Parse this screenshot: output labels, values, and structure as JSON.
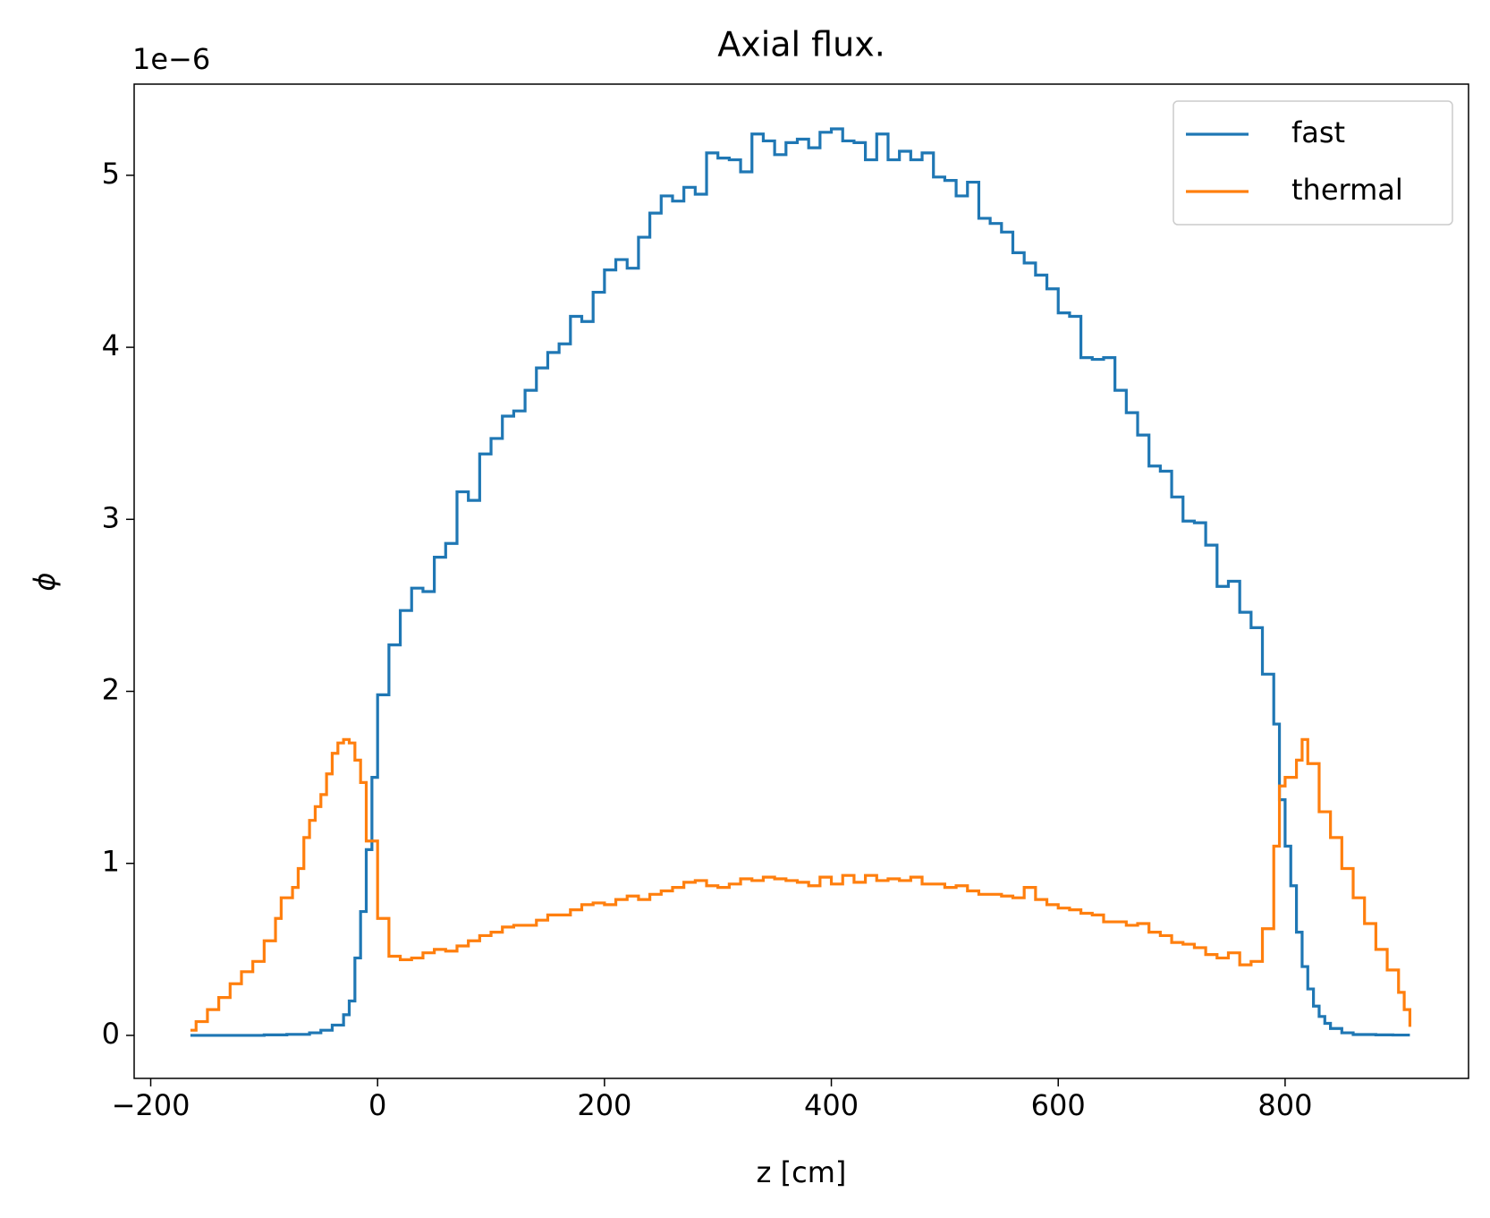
{
  "chart_data": {
    "type": "step",
    "title": "Axial flux.",
    "x_label": "z [cm]",
    "y_label": "ϕ",
    "y_offset_text": "1e−6",
    "xlim": [
      -214.6,
      961.7
    ],
    "ylim": [
      -0.25,
      5.53
    ],
    "xticks": [
      {
        "value": -200,
        "label": "−200"
      },
      0,
      200,
      400,
      600,
      800
    ],
    "yticks": [
      0,
      1,
      2,
      3,
      4,
      5
    ],
    "legend": "upper right",
    "grid": false,
    "series": [
      {
        "name": "fast",
        "color": "#1f77b4",
        "x": [
          -165,
          -100,
          -80,
          -60,
          -50,
          -40,
          -30,
          -25,
          -20,
          -15,
          -10,
          -5,
          0,
          10,
          20,
          30,
          40,
          50,
          60,
          70,
          80,
          90,
          100,
          110,
          120,
          130,
          140,
          150,
          160,
          170,
          180,
          190,
          200,
          210,
          220,
          230,
          240,
          250,
          260,
          270,
          280,
          290,
          300,
          310,
          320,
          330,
          340,
          350,
          360,
          370,
          380,
          390,
          400,
          410,
          420,
          430,
          440,
          450,
          460,
          470,
          480,
          490,
          500,
          510,
          520,
          530,
          540,
          550,
          560,
          570,
          580,
          590,
          600,
          610,
          620,
          630,
          640,
          650,
          660,
          670,
          680,
          690,
          700,
          710,
          720,
          730,
          740,
          750,
          760,
          770,
          780,
          790,
          795,
          800,
          805,
          810,
          815,
          820,
          825,
          830,
          835,
          840,
          850,
          860,
          880,
          895,
          910
        ],
        "values": [
          0,
          0.003,
          0.006,
          0.015,
          0.03,
          0.06,
          0.12,
          0.2,
          0.45,
          0.72,
          1.08,
          1.5,
          1.98,
          2.27,
          2.47,
          2.6,
          2.58,
          2.78,
          2.86,
          3.16,
          3.11,
          3.38,
          3.47,
          3.6,
          3.63,
          3.75,
          3.88,
          3.97,
          4.02,
          4.18,
          4.15,
          4.32,
          4.45,
          4.51,
          4.46,
          4.64,
          4.78,
          4.88,
          4.85,
          4.93,
          4.89,
          5.13,
          5.1,
          5.09,
          5.02,
          5.24,
          5.2,
          5.12,
          5.19,
          5.21,
          5.16,
          5.25,
          5.27,
          5.2,
          5.19,
          5.09,
          5.24,
          5.09,
          5.14,
          5.09,
          5.13,
          4.99,
          4.97,
          4.88,
          4.96,
          4.75,
          4.72,
          4.67,
          4.55,
          4.49,
          4.42,
          4.34,
          4.2,
          4.18,
          3.94,
          3.93,
          3.94,
          3.75,
          3.62,
          3.49,
          3.31,
          3.28,
          3.13,
          2.99,
          2.98,
          2.85,
          2.61,
          2.64,
          2.46,
          2.37,
          2.1,
          1.81,
          1.37,
          1.1,
          0.87,
          0.6,
          0.4,
          0.27,
          0.17,
          0.11,
          0.07,
          0.04,
          0.015,
          0.005,
          0.003,
          0.002,
          0.002
        ]
      },
      {
        "name": "thermal",
        "color": "#ff7f0e",
        "x": [
          -165,
          -160,
          -150,
          -140,
          -130,
          -120,
          -110,
          -100,
          -90,
          -85,
          -75,
          -70,
          -65,
          -60,
          -55,
          -50,
          -45,
          -40,
          -35,
          -30,
          -25,
          -20,
          -15,
          -10,
          0,
          10,
          20,
          30,
          40,
          50,
          60,
          70,
          80,
          90,
          100,
          110,
          120,
          130,
          140,
          150,
          160,
          170,
          180,
          190,
          200,
          210,
          220,
          230,
          240,
          250,
          260,
          270,
          280,
          290,
          300,
          310,
          320,
          330,
          340,
          350,
          360,
          370,
          380,
          390,
          400,
          410,
          420,
          430,
          440,
          450,
          460,
          470,
          480,
          490,
          500,
          510,
          520,
          530,
          540,
          550,
          560,
          570,
          580,
          590,
          600,
          610,
          620,
          630,
          640,
          650,
          660,
          670,
          680,
          690,
          700,
          710,
          720,
          730,
          740,
          750,
          760,
          770,
          780,
          790,
          795,
          800,
          810,
          815,
          820,
          830,
          840,
          850,
          860,
          870,
          880,
          890,
          900,
          905,
          910
        ],
        "values": [
          0.03,
          0.08,
          0.15,
          0.22,
          0.3,
          0.37,
          0.43,
          0.55,
          0.68,
          0.8,
          0.86,
          0.97,
          1.15,
          1.25,
          1.33,
          1.4,
          1.52,
          1.64,
          1.7,
          1.72,
          1.7,
          1.6,
          1.47,
          1.13,
          0.68,
          0.46,
          0.44,
          0.45,
          0.48,
          0.5,
          0.49,
          0.52,
          0.55,
          0.58,
          0.6,
          0.63,
          0.64,
          0.64,
          0.67,
          0.7,
          0.7,
          0.73,
          0.76,
          0.77,
          0.76,
          0.79,
          0.81,
          0.79,
          0.82,
          0.84,
          0.86,
          0.89,
          0.9,
          0.87,
          0.86,
          0.88,
          0.91,
          0.9,
          0.92,
          0.91,
          0.9,
          0.89,
          0.87,
          0.92,
          0.88,
          0.93,
          0.89,
          0.93,
          0.9,
          0.91,
          0.9,
          0.92,
          0.88,
          0.88,
          0.86,
          0.87,
          0.84,
          0.82,
          0.82,
          0.81,
          0.8,
          0.86,
          0.79,
          0.76,
          0.74,
          0.73,
          0.71,
          0.7,
          0.66,
          0.66,
          0.64,
          0.65,
          0.6,
          0.58,
          0.54,
          0.53,
          0.51,
          0.47,
          0.45,
          0.48,
          0.41,
          0.43,
          0.62,
          1.1,
          1.45,
          1.5,
          1.6,
          1.72,
          1.58,
          1.3,
          1.15,
          0.97,
          0.8,
          0.65,
          0.5,
          0.38,
          0.25,
          0.15,
          0.05
        ]
      }
    ]
  }
}
